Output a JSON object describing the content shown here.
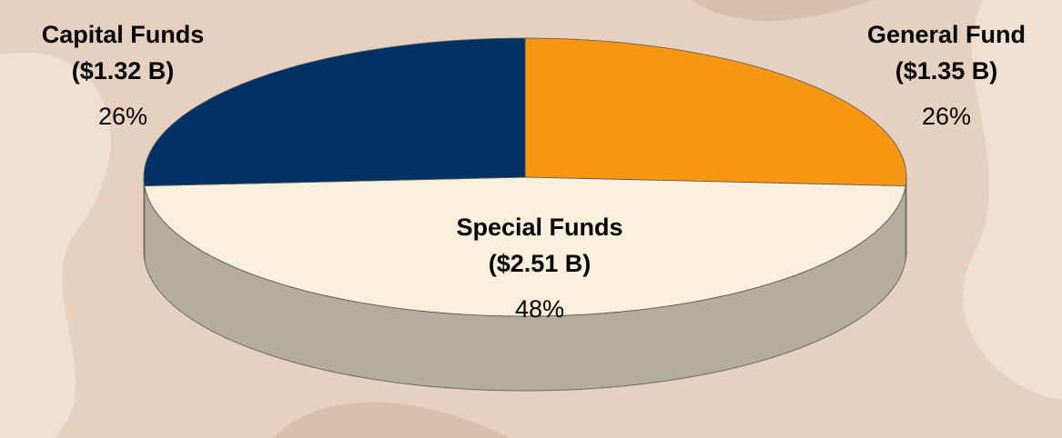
{
  "chart_data": {
    "type": "pie",
    "categories": [
      "General Fund",
      "Special Funds",
      "Capital Funds"
    ],
    "values": [
      26,
      48,
      26
    ],
    "value_labels": [
      "26%",
      "48%",
      "26%"
    ],
    "amounts": [
      1.35,
      2.51,
      1.32
    ],
    "amount_labels": [
      "($1.35 B)",
      "($2.51 B)",
      "($1.32 B)"
    ],
    "colors": [
      "#f7960f",
      "#f8f0dc",
      "#003163"
    ]
  }
}
